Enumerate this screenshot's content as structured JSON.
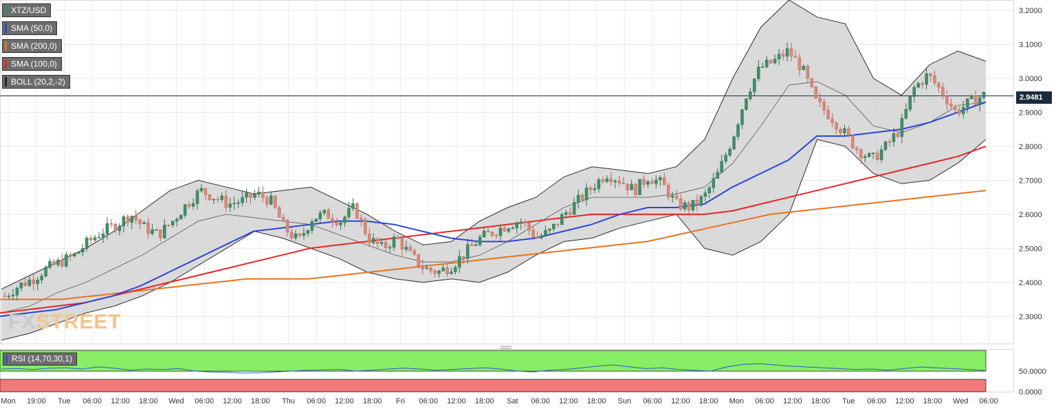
{
  "chart_data": {
    "type": "candlestick",
    "symbol": "XTZ/USD",
    "indicators": [
      {
        "name": "SMA (50,0)",
        "color": "#2a45d6"
      },
      {
        "name": "SMA (200,0)",
        "color": "#e8731e"
      },
      {
        "name": "SMA (100,0)",
        "color": "#e52525"
      },
      {
        "name": "BOLL (20,2,-2)",
        "color": "#222222"
      }
    ],
    "last_price": "2.9481",
    "ylim": [
      2.22,
      3.23
    ],
    "y_ticks": [
      "2.3000",
      "2.4000",
      "2.5000",
      "2.6000",
      "2.7000",
      "2.8000",
      "2.9000",
      "3.0000",
      "3.1000",
      "3.2000"
    ],
    "x_ticks": [
      "Mon",
      "19:00",
      "Tue",
      "06:00",
      "12:00",
      "18:00",
      "Wed",
      "06:00",
      "12:00",
      "18:00",
      "Thu",
      "06:00",
      "12:00",
      "18:00",
      "Fri",
      "06:00",
      "12:00",
      "18:00",
      "Sat",
      "06:00",
      "12:00",
      "18:00",
      "Sun",
      "06:00",
      "12:00",
      "18:00",
      "Mon",
      "06:00",
      "12:00",
      "18:00",
      "Tue",
      "06:00",
      "12:00",
      "18:00",
      "Wed",
      "06:00"
    ],
    "price_path": [
      2.36,
      2.39,
      2.41,
      2.44,
      2.46,
      2.48,
      2.52,
      2.55,
      2.57,
      2.6,
      2.56,
      2.54,
      2.58,
      2.63,
      2.67,
      2.65,
      2.63,
      2.64,
      2.66,
      2.64,
      2.56,
      2.52,
      2.59,
      2.6,
      2.58,
      2.62,
      2.53,
      2.5,
      2.53,
      2.48,
      2.44,
      2.43,
      2.45,
      2.49,
      2.53,
      2.55,
      2.57,
      2.58,
      2.53,
      2.55,
      2.6,
      2.64,
      2.68,
      2.72,
      2.7,
      2.67,
      2.71,
      2.69,
      2.63,
      2.62,
      2.65,
      2.72,
      2.82,
      2.95,
      3.03,
      3.05,
      3.08,
      3.03,
      2.93,
      2.89,
      2.84,
      2.79,
      2.76,
      2.8,
      2.85,
      2.97,
      3.01,
      2.96,
      2.9,
      2.93,
      2.95
    ],
    "sma50_path": [
      2.3,
      2.31,
      2.32,
      2.34,
      2.36,
      2.39,
      2.43,
      2.47,
      2.51,
      2.55,
      2.56,
      2.57,
      2.58,
      2.58,
      2.57,
      2.55,
      2.53,
      2.52,
      2.52,
      2.53,
      2.55,
      2.57,
      2.6,
      2.62,
      2.62,
      2.63,
      2.68,
      2.72,
      2.76,
      2.83,
      2.83,
      2.84,
      2.85,
      2.87,
      2.9,
      2.93
    ],
    "sma100_path": [
      2.31,
      2.32,
      2.33,
      2.34,
      2.36,
      2.38,
      2.4,
      2.42,
      2.44,
      2.46,
      2.48,
      2.5,
      2.51,
      2.52,
      2.53,
      2.54,
      2.55,
      2.56,
      2.57,
      2.58,
      2.59,
      2.6,
      2.6,
      2.6,
      2.6,
      2.6,
      2.61,
      2.63,
      2.65,
      2.67,
      2.69,
      2.71,
      2.73,
      2.75,
      2.77,
      2.8
    ],
    "sma200_path": [
      2.35,
      2.35,
      2.35,
      2.36,
      2.37,
      2.38,
      2.39,
      2.4,
      2.41,
      2.41,
      2.41,
      2.42,
      2.43,
      2.44,
      2.45,
      2.46,
      2.47,
      2.48,
      2.49,
      2.5,
      2.51,
      2.52,
      2.54,
      2.56,
      2.58,
      2.6,
      2.61,
      2.62,
      2.63,
      2.64,
      2.65,
      2.66,
      2.67
    ],
    "boll_upper": [
      2.38,
      2.42,
      2.46,
      2.5,
      2.55,
      2.61,
      2.67,
      2.7,
      2.68,
      2.66,
      2.67,
      2.68,
      2.64,
      2.6,
      2.55,
      2.51,
      2.52,
      2.58,
      2.62,
      2.65,
      2.71,
      2.74,
      2.73,
      2.72,
      2.74,
      2.82,
      3.0,
      3.15,
      3.23,
      3.18,
      3.16,
      3.0,
      2.95,
      3.04,
      3.08,
      3.05
    ],
    "boll_lower": [
      2.23,
      2.25,
      2.28,
      2.31,
      2.33,
      2.36,
      2.4,
      2.45,
      2.5,
      2.55,
      2.53,
      2.5,
      2.47,
      2.43,
      2.41,
      2.4,
      2.41,
      2.4,
      2.43,
      2.48,
      2.52,
      2.53,
      2.56,
      2.58,
      2.6,
      2.5,
      2.48,
      2.52,
      2.6,
      2.82,
      2.8,
      2.72,
      2.69,
      2.7,
      2.75,
      2.82
    ],
    "boll_mid": [
      2.31,
      2.33,
      2.37,
      2.4,
      2.44,
      2.48,
      2.53,
      2.58,
      2.6,
      2.59,
      2.58,
      2.57,
      2.54,
      2.51,
      2.48,
      2.46,
      2.46,
      2.48,
      2.52,
      2.57,
      2.62,
      2.65,
      2.65,
      2.65,
      2.66,
      2.68,
      2.75,
      2.86,
      2.98,
      2.99,
      2.95,
      2.86,
      2.84,
      2.87,
      2.92,
      2.93
    ],
    "rsi": {
      "label": "RSI (14,70,30,1)",
      "y_ticks": [
        "50.0000",
        "0.0000"
      ],
      "upper": 70,
      "lower": 30,
      "values": [
        55,
        56,
        54,
        57,
        58,
        55,
        60,
        57,
        52,
        55,
        54,
        56,
        50,
        48,
        47,
        45,
        46,
        48,
        50,
        52,
        53,
        54,
        50,
        52,
        55,
        57,
        55,
        52,
        54,
        56,
        58,
        55,
        50,
        48,
        52,
        54,
        58,
        62,
        65,
        60,
        56,
        58,
        54,
        52,
        50,
        60,
        66,
        68,
        65,
        62,
        60,
        58,
        56,
        54,
        55,
        52,
        56,
        60,
        58,
        56,
        54,
        52
      ]
    }
  }
}
